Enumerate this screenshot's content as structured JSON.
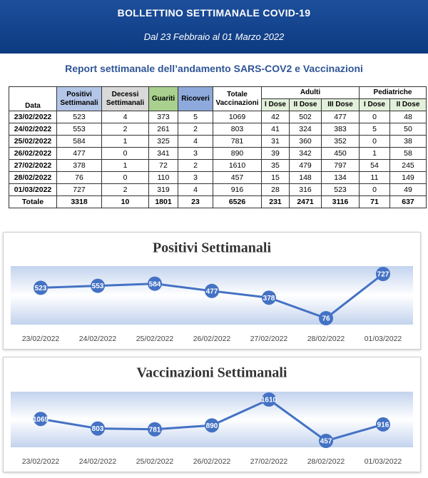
{
  "header": {
    "title": "BOLLETTINO SETTIMANALE COVID-19",
    "subtitle": "Dal 23 Febbraio al 01 Marzo 2022"
  },
  "report_title": "Report settimanale dell’andamento SARS-COV2 e Vaccinazioni",
  "table": {
    "columns": [
      "Data",
      "Positivi Settimanali",
      "Decessi Settimanali",
      "Guariti",
      "Ricoveri",
      "Totale Vaccinazioni"
    ],
    "groups": [
      {
        "label": "Adulti",
        "columns": [
          "I Dose",
          "II Dose",
          "III Dose"
        ]
      },
      {
        "label": "Pediatriche",
        "columns": [
          "I Dose",
          "II Dose"
        ]
      }
    ],
    "rows": [
      [
        "23/02/2022",
        523,
        4,
        373,
        5,
        1069,
        42,
        502,
        477,
        0,
        48
      ],
      [
        "24/02/2022",
        553,
        2,
        261,
        2,
        803,
        41,
        324,
        383,
        5,
        50
      ],
      [
        "25/02/2022",
        584,
        1,
        325,
        4,
        781,
        31,
        360,
        352,
        0,
        38
      ],
      [
        "26/02/2022",
        477,
        0,
        341,
        3,
        890,
        39,
        342,
        450,
        1,
        58
      ],
      [
        "27/02/2022",
        378,
        1,
        72,
        2,
        1610,
        35,
        479,
        797,
        54,
        245
      ],
      [
        "28/02/2022",
        76,
        0,
        110,
        3,
        457,
        15,
        148,
        134,
        11,
        149
      ],
      [
        "01/03/2022",
        727,
        2,
        319,
        4,
        916,
        28,
        316,
        523,
        0,
        49
      ],
      [
        "Totale",
        3318,
        10,
        1801,
        23,
        6526,
        231,
        2471,
        3116,
        71,
        637
      ]
    ]
  },
  "chart_data": [
    {
      "type": "line",
      "title": "Positivi Settimanali",
      "color": "#4472c4",
      "categories": [
        "23/02/2022",
        "24/02/2022",
        "25/02/2022",
        "26/02/2022",
        "27/02/2022",
        "28/02/2022",
        "01/03/2022"
      ],
      "values": [
        523,
        553,
        584,
        477,
        378,
        76,
        727
      ]
    },
    {
      "type": "line",
      "title": "Vaccinazioni Settimanali",
      "color": "#4472c4",
      "categories": [
        "23/02/2022",
        "24/02/2022",
        "25/02/2022",
        "26/02/2022",
        "27/02/2022",
        "28/02/2022",
        "01/03/2022"
      ],
      "values": [
        1069,
        803,
        781,
        890,
        1610,
        457,
        916
      ]
    }
  ]
}
